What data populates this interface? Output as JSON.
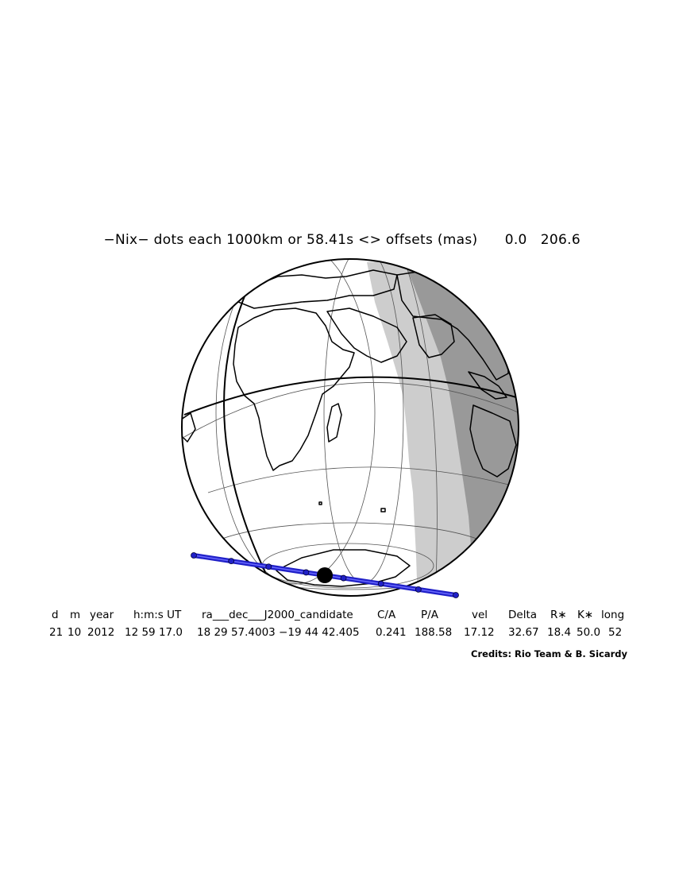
{
  "title": {
    "main": "−Nix− dots each 1000km or 58.41s <> offsets (mas)",
    "offset_x": "0.0",
    "offset_y": "206.6"
  },
  "table": {
    "headers": [
      "d",
      "m",
      "year",
      "h:m:s UT",
      "ra___dec___J2000_candidate",
      "C/A",
      "P/A",
      "vel",
      "Delta",
      "R∗",
      "K∗",
      "long"
    ],
    "values": [
      "21",
      "10",
      "2012",
      "12 59 17.0",
      "18 29 57.4003 −19 44 42.405",
      "0.241",
      "188.58",
      "17.12",
      "32.67",
      "18.4",
      "50.0",
      "52"
    ]
  },
  "credits": "Credits: Rio Team & B. Sicardy",
  "map": {
    "globe_fill": "#ffffff",
    "twilight_fill": "#cdcdcd",
    "night_fill": "#999999",
    "track_color": "#2020c8",
    "track_dots": 8,
    "dot_spacing_km": 1000,
    "dot_spacing_s": 58.41
  }
}
